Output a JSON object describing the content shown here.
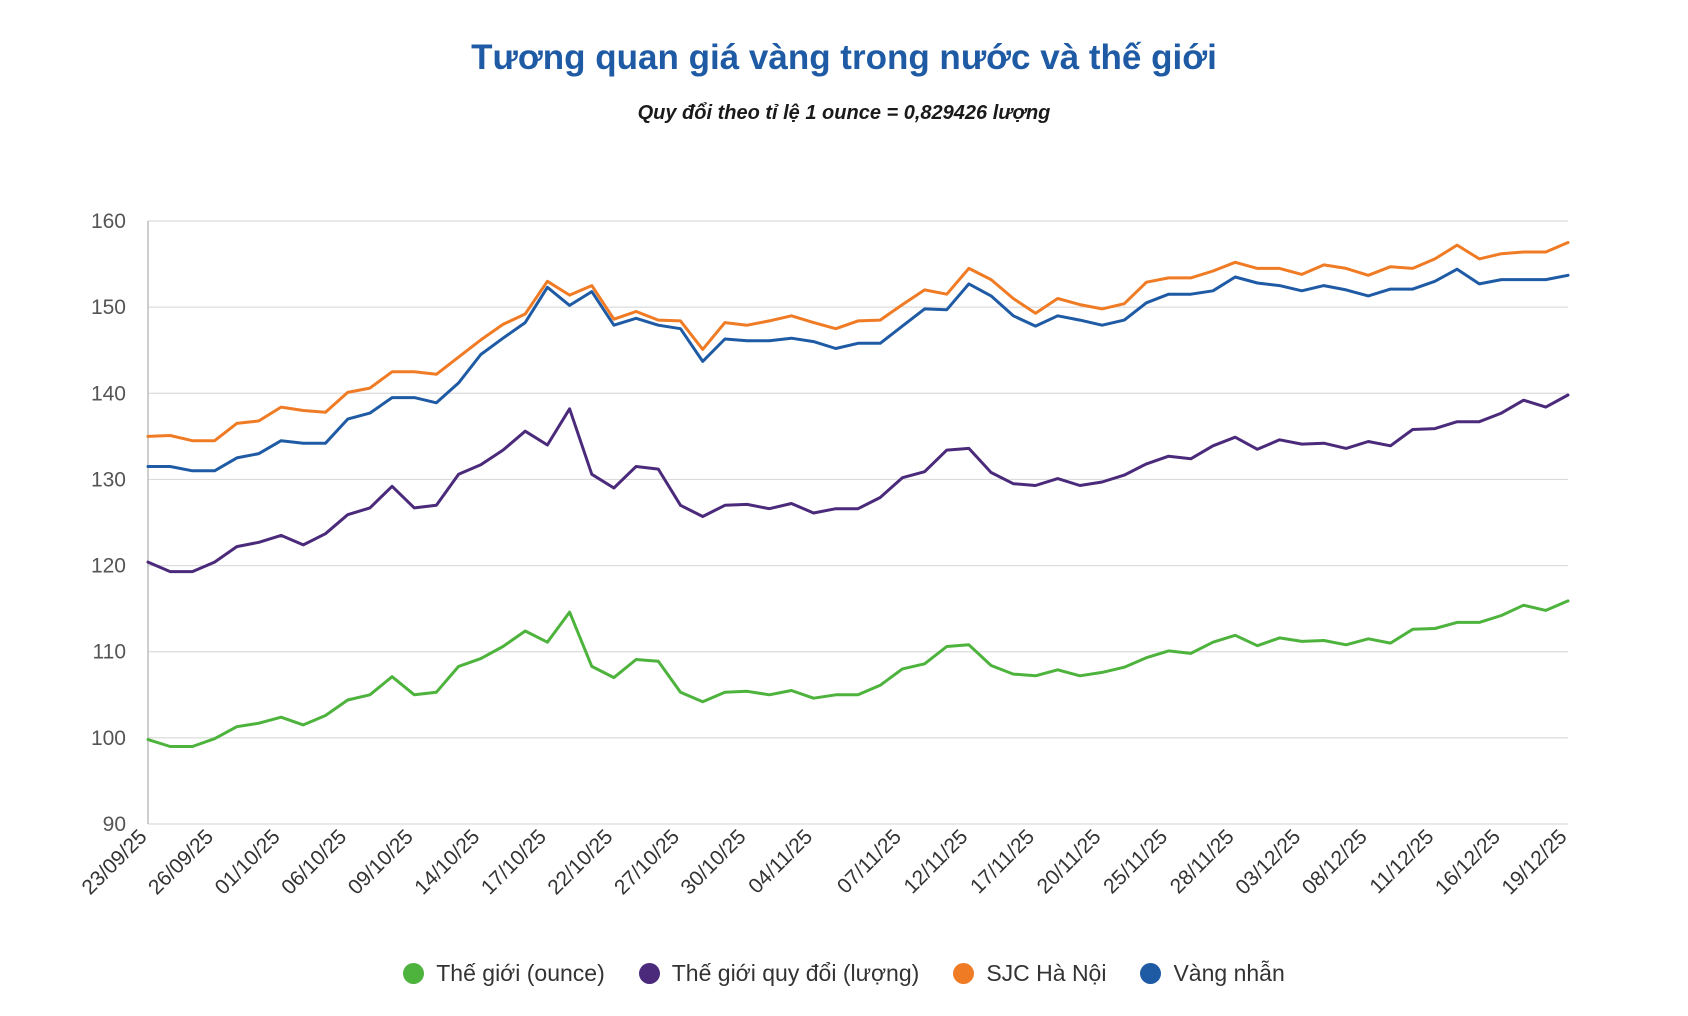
{
  "chart_data": {
    "type": "line",
    "title": "Tương quan giá vàng trong nước và thế giới",
    "subtitle": "Quy đổi theo tỉ lệ 1 ounce = 0,829426 lượng",
    "xlabel": "",
    "ylabel": "",
    "ylim": [
      90,
      160
    ],
    "yticks": [
      "90",
      "100",
      "110",
      "120",
      "130",
      "140",
      "150",
      "160"
    ],
    "grid": true,
    "legend_position": "bottom",
    "x_tick_labels": [
      "23/09/25",
      "26/09/25",
      "01/10/25",
      "06/10/25",
      "09/10/25",
      "14/10/25",
      "17/10/25",
      "22/10/25",
      "27/10/25",
      "30/10/25",
      "04/11/25",
      "07/11/25",
      "12/11/25",
      "17/11/25",
      "20/11/25",
      "25/11/25",
      "28/11/25",
      "03/12/25",
      "08/12/25",
      "11/12/25",
      "16/12/25",
      "19/12/25"
    ],
    "point_count": 65,
    "series": [
      {
        "name": "Thế giới (ounce)",
        "color": "#4db33d",
        "values": [
          99.8,
          99.0,
          99.0,
          99.9,
          101.3,
          101.7,
          102.4,
          101.5,
          102.6,
          104.4,
          105.0,
          107.1,
          105.0,
          105.3,
          108.3,
          109.2,
          110.6,
          112.4,
          111.1,
          114.6,
          108.3,
          107.0,
          109.1,
          108.9,
          105.3,
          104.2,
          105.3,
          105.4,
          105.0,
          105.5,
          104.6,
          105.0,
          105.0,
          106.1,
          108.0,
          108.6,
          110.6,
          110.8,
          108.4,
          107.4,
          107.2,
          107.9,
          107.2,
          107.6,
          108.2,
          109.3,
          110.1,
          109.8,
          111.1,
          111.9,
          110.7,
          111.6,
          111.2,
          111.3,
          110.8,
          111.5,
          111.0,
          112.6,
          112.7,
          113.4,
          113.4,
          114.2,
          115.4,
          114.8,
          115.9
        ]
      },
      {
        "name": "Thế giới quy đổi (lượng)",
        "color": "#4b2a7b",
        "values": [
          120.4,
          119.3,
          119.3,
          120.4,
          122.2,
          122.7,
          123.5,
          122.4,
          123.7,
          125.9,
          126.7,
          129.2,
          126.7,
          127.0,
          130.6,
          131.7,
          133.4,
          135.6,
          134.0,
          138.2,
          130.6,
          129.0,
          131.5,
          131.2,
          127.0,
          125.7,
          127.0,
          127.1,
          126.6,
          127.2,
          126.1,
          126.6,
          126.6,
          127.9,
          130.2,
          130.9,
          133.4,
          133.6,
          130.8,
          129.5,
          129.3,
          130.1,
          129.3,
          129.7,
          130.5,
          131.8,
          132.7,
          132.4,
          133.9,
          134.9,
          133.5,
          134.6,
          134.1,
          134.2,
          133.6,
          134.4,
          133.9,
          135.8,
          135.9,
          136.7,
          136.7,
          137.7,
          139.2,
          138.4,
          139.8
        ]
      },
      {
        "name": "SJC Hà Nội",
        "color": "#f07b25",
        "values": [
          135.0,
          135.1,
          134.5,
          134.5,
          136.5,
          136.8,
          138.4,
          138.0,
          137.8,
          140.1,
          140.6,
          142.5,
          142.5,
          142.2,
          144.2,
          146.2,
          148.0,
          149.2,
          153.0,
          151.4,
          152.5,
          148.6,
          149.5,
          148.5,
          148.4,
          145.1,
          148.2,
          147.9,
          148.4,
          149.0,
          148.2,
          147.5,
          148.4,
          148.5,
          150.3,
          152.0,
          151.5,
          154.5,
          153.2,
          151.0,
          149.3,
          151.0,
          150.3,
          149.8,
          150.4,
          152.9,
          153.4,
          153.4,
          154.2,
          155.2,
          154.5,
          154.5,
          153.8,
          154.9,
          154.5,
          153.7,
          154.7,
          154.5,
          155.6,
          157.2,
          155.6,
          156.2,
          156.4,
          156.4,
          157.5
        ]
      },
      {
        "name": "Vàng nhẫn",
        "color": "#1f5ba5",
        "values": [
          131.5,
          131.5,
          131.0,
          131.0,
          132.5,
          133.0,
          134.5,
          134.2,
          134.2,
          137.0,
          137.7,
          139.5,
          139.5,
          138.9,
          141.2,
          144.5,
          146.4,
          148.2,
          152.3,
          150.2,
          151.8,
          147.9,
          148.7,
          147.9,
          147.5,
          143.7,
          146.3,
          146.1,
          146.1,
          146.4,
          146.0,
          145.2,
          145.8,
          145.8,
          147.8,
          149.8,
          149.7,
          152.7,
          151.3,
          149.0,
          147.8,
          149.0,
          148.5,
          147.9,
          148.5,
          150.5,
          151.5,
          151.5,
          151.9,
          153.5,
          152.8,
          152.5,
          151.9,
          152.5,
          152.0,
          151.3,
          152.1,
          152.1,
          153.0,
          154.4,
          152.7,
          153.2,
          153.2,
          153.2,
          153.7
        ]
      }
    ]
  }
}
